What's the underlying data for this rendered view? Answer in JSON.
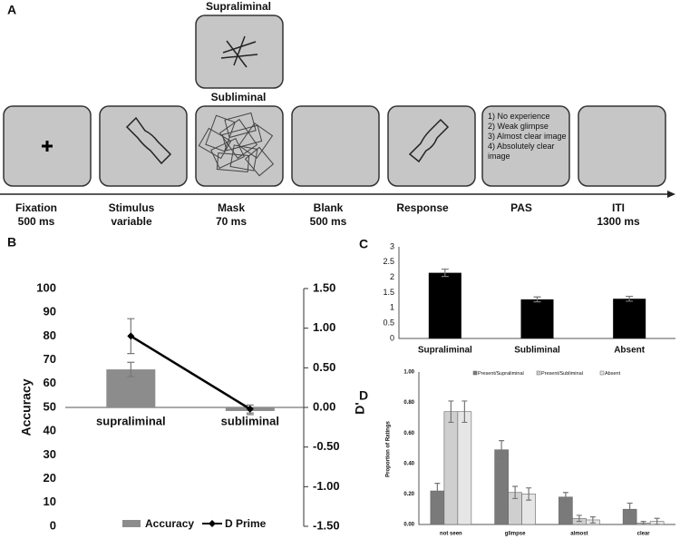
{
  "diagram": {
    "label": "A",
    "mask_labels": [
      "Supraliminal",
      "Subliminal"
    ],
    "pas_items": [
      "1) No experience",
      "2) Weak glimpse",
      "3) Almost clear image",
      "4) Absolutely clear image"
    ],
    "steps": [
      {
        "name": "Fixation",
        "duration": "500 ms"
      },
      {
        "name": "Stimulus",
        "duration": "variable"
      },
      {
        "name": "Mask",
        "duration": "70 ms"
      },
      {
        "name": "Blank",
        "duration": "500 ms"
      },
      {
        "name": "Response"
      },
      {
        "name": "PAS"
      },
      {
        "name": "ITI",
        "duration": "1300 ms"
      }
    ]
  },
  "chart_data": [
    {
      "type": "combo",
      "label": "B",
      "y_label": "Accuracy",
      "y2_label": "D'",
      "categories": [
        "supraliminal",
        "subliminal"
      ],
      "ylim": [
        0,
        100
      ],
      "yticks": [
        0,
        10,
        20,
        30,
        40,
        50,
        60,
        70,
        80,
        90,
        100
      ],
      "y2lim": [
        -1.5,
        1.5
      ],
      "y2ticks": [
        {
          "value": -1.5,
          "label": "-1.50"
        },
        {
          "value": -1,
          "label": "-1.00"
        },
        {
          "value": -0.5,
          "label": "-0.50"
        },
        {
          "value": 0,
          "label": "0.00"
        },
        {
          "value": 0.5,
          "label": "0.50"
        },
        {
          "value": 1,
          "label": "1.00"
        },
        {
          "value": 1.5,
          "label": "1.50"
        }
      ],
      "series": [
        {
          "name": "Accuracy",
          "type": "bar",
          "color": "#8c8c8c",
          "values": [
            66,
            48.5
          ],
          "errors": [
            3,
            1.5
          ]
        },
        {
          "name": "D Prime",
          "type": "line",
          "axis": "y2",
          "color": "#000000",
          "values": [
            0.9,
            -0.02
          ],
          "errors": [
            0.22,
            0.05
          ]
        }
      ]
    },
    {
      "type": "bar",
      "label": "C",
      "categories": [
        "Supraliminal",
        "Subliminal",
        "Absent"
      ],
      "values": [
        2.15,
        1.28,
        1.3
      ],
      "errors": [
        0.12,
        0.08,
        0.08
      ],
      "color": "#000000",
      "ylim": [
        0,
        3
      ],
      "yticks": [
        0,
        0.5,
        1,
        1.5,
        2,
        2.5,
        3
      ]
    },
    {
      "type": "grouped_bar",
      "label": "D",
      "y_label": "Proportion of Ratings",
      "categories": [
        "not seen",
        "glimpse",
        "almost",
        "clear"
      ],
      "ylim": [
        0,
        1
      ],
      "yticks": [
        {
          "value": 0,
          "label": "0.00"
        },
        {
          "value": 0.2,
          "label": "0.20"
        },
        {
          "value": 0.4,
          "label": "0.40"
        },
        {
          "value": 0.6,
          "label": "0.60"
        },
        {
          "value": 0.8,
          "label": "0.80"
        },
        {
          "value": 1,
          "label": "1.00"
        }
      ],
      "series": [
        {
          "name": "Present/Supraliminal",
          "color": "#7a7a7a",
          "values": [
            0.22,
            0.49,
            0.18,
            0.1
          ],
          "errors": [
            0.05,
            0.06,
            0.03,
            0.04
          ]
        },
        {
          "name": "Present/Subliminal",
          "color": "#cfcfcf",
          "values": [
            0.74,
            0.21,
            0.04,
            0.01
          ],
          "errors": [
            0.07,
            0.04,
            0.02,
            0.01
          ]
        },
        {
          "name": "Absent",
          "color": "#e6e6e6",
          "values": [
            0.74,
            0.2,
            0.03,
            0.02
          ],
          "errors": [
            0.07,
            0.04,
            0.02,
            0.02
          ]
        }
      ]
    }
  ]
}
